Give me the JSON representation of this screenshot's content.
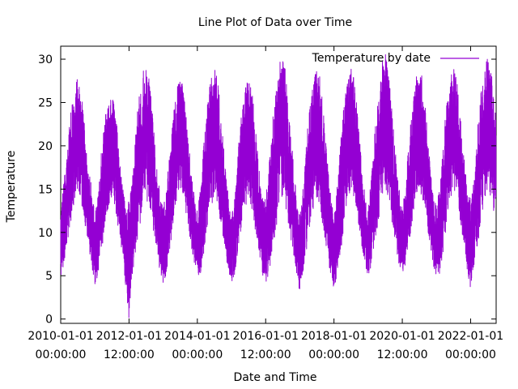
{
  "chart_data": {
    "type": "line",
    "title": "Line Plot of Data over Time",
    "xlabel": "Date and Time",
    "ylabel": "Temperature",
    "legend": {
      "label": "Temperature by date",
      "placement": "top-right"
    },
    "series_color": "#9400d3",
    "xlim": [
      "2010-01-01",
      "2022-10-01"
    ],
    "ylim": [
      -0.5,
      31.5
    ],
    "grid": false,
    "x_ticks": [
      {
        "value": "2010-01-01",
        "line1": "2010-01-01",
        "line2": "00:00:00"
      },
      {
        "value": "2012-01-01T12:00",
        "line1": "2012-01-01",
        "line2": "12:00:00"
      },
      {
        "value": "2014-01-01",
        "line1": "2014-01-01",
        "line2": "00:00:00"
      },
      {
        "value": "2016-01-01T12:00",
        "line1": "2016-01-01",
        "line2": "12:00:00"
      },
      {
        "value": "2018-01-01",
        "line1": "2018-01-01",
        "line2": "00:00:00"
      },
      {
        "value": "2020-01-01T12:00",
        "line1": "2020-01-01",
        "line2": "12:00:00"
      },
      {
        "value": "2022-01-01",
        "line1": "2022-01-01",
        "line2": "00:00:00"
      }
    ],
    "y_ticks": [
      0,
      5,
      10,
      15,
      20,
      25,
      30
    ],
    "series": [
      {
        "name": "Temperature by date",
        "x": [
          "2010-01-01",
          "2010-02-01",
          "2010-03-01",
          "2010-04-01",
          "2010-05-01",
          "2010-06-01",
          "2010-07-01",
          "2010-08-01",
          "2010-09-01",
          "2010-10-01",
          "2010-11-01",
          "2010-12-01",
          "2011-01-01",
          "2011-02-01",
          "2011-03-01",
          "2011-04-01",
          "2011-05-01",
          "2011-06-01",
          "2011-07-01",
          "2011-08-01",
          "2011-09-01",
          "2011-10-01",
          "2011-11-01",
          "2011-12-01",
          "2012-01-01",
          "2012-02-01",
          "2012-03-01",
          "2012-04-01",
          "2012-05-01",
          "2012-06-01",
          "2012-07-01",
          "2012-08-01",
          "2012-09-01",
          "2012-10-01",
          "2012-11-01",
          "2012-12-01",
          "2013-01-01",
          "2013-02-01",
          "2013-03-01",
          "2013-04-01",
          "2013-05-01",
          "2013-06-01",
          "2013-07-01",
          "2013-08-01",
          "2013-09-01",
          "2013-10-01",
          "2013-11-01",
          "2013-12-01",
          "2014-01-01",
          "2014-02-01",
          "2014-03-01",
          "2014-04-01",
          "2014-05-01",
          "2014-06-01",
          "2014-07-01",
          "2014-08-01",
          "2014-09-01",
          "2014-10-01",
          "2014-11-01",
          "2014-12-01",
          "2015-01-01",
          "2015-02-01",
          "2015-03-01",
          "2015-04-01",
          "2015-05-01",
          "2015-06-01",
          "2015-07-01",
          "2015-08-01",
          "2015-09-01",
          "2015-10-01",
          "2015-11-01",
          "2015-12-01",
          "2016-01-01",
          "2016-02-01",
          "2016-03-01",
          "2016-04-01",
          "2016-05-01",
          "2016-06-01",
          "2016-07-01",
          "2016-08-01",
          "2016-09-01",
          "2016-10-01",
          "2016-11-01",
          "2016-12-01",
          "2017-01-01",
          "2017-02-01",
          "2017-03-01",
          "2017-04-01",
          "2017-05-01",
          "2017-06-01",
          "2017-07-01",
          "2017-08-01",
          "2017-09-01",
          "2017-10-01",
          "2017-11-01",
          "2017-12-01",
          "2018-01-01",
          "2018-02-01",
          "2018-03-01",
          "2018-04-01",
          "2018-05-01",
          "2018-06-01",
          "2018-07-01",
          "2018-08-01",
          "2018-09-01",
          "2018-10-01",
          "2018-11-01",
          "2018-12-01",
          "2019-01-01",
          "2019-02-01",
          "2019-03-01",
          "2019-04-01",
          "2019-05-01",
          "2019-06-01",
          "2019-07-01",
          "2019-08-01",
          "2019-09-01",
          "2019-10-01",
          "2019-11-01",
          "2019-12-01",
          "2020-01-01",
          "2020-02-01",
          "2020-03-01",
          "2020-04-01",
          "2020-05-01",
          "2020-06-01",
          "2020-07-01",
          "2020-08-01",
          "2020-09-01",
          "2020-10-01",
          "2020-11-01",
          "2020-12-01",
          "2021-01-01",
          "2021-02-01",
          "2021-03-01",
          "2021-04-01",
          "2021-05-01",
          "2021-06-01",
          "2021-07-01",
          "2021-08-01",
          "2021-09-01",
          "2021-10-01",
          "2021-11-01",
          "2021-12-01",
          "2022-01-01",
          "2022-02-01",
          "2022-03-01",
          "2022-04-01",
          "2022-05-01",
          "2022-06-01",
          "2022-07-01",
          "2022-08-01",
          "2022-09-01",
          "2022-10-01"
        ],
        "y_low": [
          5,
          6,
          8,
          10,
          12,
          14,
          15,
          14,
          12,
          10,
          8,
          6,
          4,
          5,
          7,
          9,
          12,
          13,
          14,
          13,
          11,
          9,
          7,
          3,
          0,
          4,
          7,
          9,
          11,
          13,
          14,
          13,
          11,
          9,
          7,
          5,
          4,
          5,
          7,
          9,
          12,
          14,
          15,
          14,
          12,
          10,
          8,
          6,
          5,
          5,
          7,
          9,
          12,
          13,
          14,
          13,
          11,
          9,
          7,
          5,
          4,
          5,
          7,
          9,
          12,
          13,
          14,
          13,
          11,
          9,
          7,
          5,
          4,
          5,
          7,
          9,
          11,
          13,
          14,
          13,
          11,
          9,
          7,
          5,
          3,
          5,
          7,
          9,
          12,
          13,
          14,
          13,
          11,
          9,
          7,
          4,
          2,
          5,
          7,
          9,
          12,
          14,
          15,
          14,
          12,
          10,
          8,
          6,
          5,
          6,
          8,
          10,
          12,
          14,
          15,
          14,
          12,
          10,
          8,
          6,
          5,
          6,
          8,
          10,
          12,
          14,
          15,
          14,
          12,
          10,
          8,
          6,
          5,
          5,
          7,
          9,
          12,
          14,
          15,
          14,
          12,
          10,
          8,
          5,
          3,
          5,
          7,
          9,
          12,
          14,
          15,
          14,
          12,
          12
        ],
        "y_high": [
          14,
          16,
          18,
          22,
          25,
          27,
          28,
          27,
          24,
          20,
          17,
          15,
          12,
          14,
          18,
          22,
          24,
          25,
          26,
          25,
          22,
          18,
          15,
          12,
          14,
          16,
          20,
          24,
          27,
          29,
          29,
          28,
          25,
          21,
          17,
          14,
          13,
          15,
          18,
          22,
          25,
          27,
          28,
          27,
          24,
          20,
          17,
          14,
          13,
          15,
          19,
          23,
          26,
          28,
          29,
          28,
          25,
          21,
          17,
          14,
          12,
          14,
          18,
          22,
          25,
          27,
          28,
          27,
          24,
          20,
          17,
          14,
          14,
          17,
          21,
          25,
          28,
          31,
          30,
          29,
          25,
          21,
          17,
          14,
          12,
          15,
          19,
          23,
          26,
          28,
          29,
          28,
          25,
          21,
          17,
          14,
          12,
          15,
          19,
          23,
          26,
          28,
          29,
          28,
          25,
          21,
          17,
          14,
          13,
          16,
          20,
          24,
          27,
          30,
          31,
          29,
          26,
          22,
          18,
          15,
          13,
          15,
          19,
          23,
          26,
          28,
          29,
          28,
          25,
          21,
          17,
          14,
          13,
          15,
          19,
          23,
          26,
          28,
          29,
          28,
          25,
          21,
          18,
          15,
          14,
          16,
          20,
          24,
          27,
          31,
          30,
          29,
          27,
          25
        ]
      }
    ]
  }
}
